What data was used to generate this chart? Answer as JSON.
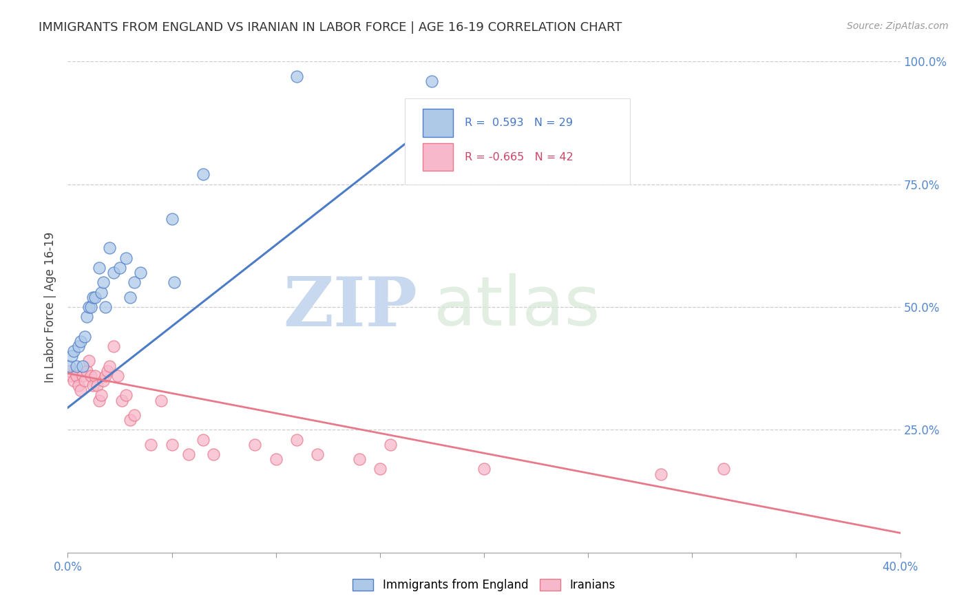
{
  "title": "IMMIGRANTS FROM ENGLAND VS IRANIAN IN LABOR FORCE | AGE 16-19 CORRELATION CHART",
  "source": "Source: ZipAtlas.com",
  "ylabel": "In Labor Force | Age 16-19",
  "xlim": [
    0.0,
    0.4
  ],
  "ylim": [
    0.0,
    1.0
  ],
  "england_R": 0.593,
  "england_N": 29,
  "iranian_R": -0.665,
  "iranian_N": 42,
  "england_color": "#aec9e8",
  "iranian_color": "#f7b8cb",
  "england_line_color": "#4d7cc7",
  "iranian_line_color": "#e8788a",
  "watermark_zip": "ZIP",
  "watermark_atlas": "atlas",
  "eng_trend_x": [
    0.0,
    0.175
  ],
  "eng_trend_y": [
    0.295,
    0.875
  ],
  "iran_trend_x": [
    0.0,
    0.4
  ],
  "iran_trend_y": [
    0.365,
    0.04
  ],
  "eng_x": [
    0.001,
    0.002,
    0.003,
    0.004,
    0.005,
    0.006,
    0.007,
    0.008,
    0.009,
    0.01,
    0.011,
    0.012,
    0.013,
    0.015,
    0.016,
    0.017,
    0.018,
    0.02,
    0.022,
    0.025,
    0.028,
    0.03,
    0.032,
    0.035,
    0.05,
    0.051,
    0.065,
    0.11,
    0.175
  ],
  "eng_y": [
    0.38,
    0.4,
    0.41,
    0.38,
    0.42,
    0.43,
    0.38,
    0.44,
    0.48,
    0.5,
    0.5,
    0.52,
    0.52,
    0.58,
    0.53,
    0.55,
    0.5,
    0.62,
    0.57,
    0.58,
    0.6,
    0.52,
    0.55,
    0.57,
    0.68,
    0.55,
    0.77,
    0.97,
    0.96
  ],
  "iran_x": [
    0.001,
    0.002,
    0.003,
    0.004,
    0.005,
    0.006,
    0.007,
    0.008,
    0.009,
    0.01,
    0.011,
    0.012,
    0.013,
    0.014,
    0.015,
    0.016,
    0.017,
    0.018,
    0.019,
    0.02,
    0.022,
    0.024,
    0.026,
    0.028,
    0.03,
    0.032,
    0.04,
    0.045,
    0.05,
    0.058,
    0.065,
    0.07,
    0.09,
    0.1,
    0.11,
    0.12,
    0.14,
    0.15,
    0.155,
    0.2,
    0.285,
    0.315
  ],
  "iran_y": [
    0.37,
    0.36,
    0.35,
    0.36,
    0.34,
    0.33,
    0.36,
    0.35,
    0.37,
    0.39,
    0.36,
    0.34,
    0.36,
    0.34,
    0.31,
    0.32,
    0.35,
    0.36,
    0.37,
    0.38,
    0.42,
    0.36,
    0.31,
    0.32,
    0.27,
    0.28,
    0.22,
    0.31,
    0.22,
    0.2,
    0.23,
    0.2,
    0.22,
    0.19,
    0.23,
    0.2,
    0.19,
    0.17,
    0.22,
    0.17,
    0.16,
    0.17
  ]
}
